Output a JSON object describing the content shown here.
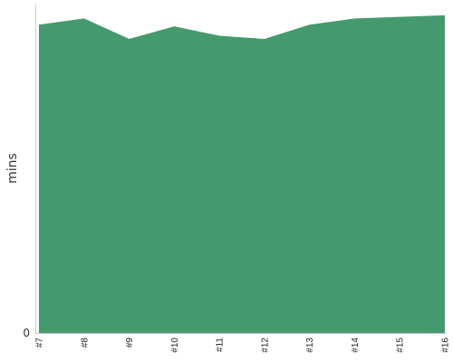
{
  "chart_data": {
    "type": "area",
    "categories": [
      "#7",
      "#8",
      "#9",
      "#10",
      "#11",
      "#12",
      "#13",
      "#14",
      "#15",
      "#16"
    ],
    "values": [
      98,
      100,
      93.5,
      97.5,
      94.5,
      93.5,
      98,
      100,
      100.5,
      101
    ],
    "xlabel": "",
    "ylabel": "mins",
    "yticks": [
      "0"
    ],
    "ylim": [
      0,
      105
    ],
    "grid": false,
    "legend": "none",
    "colors": {
      "area": "#449a6d",
      "axis": "#cccccc",
      "tick": "#333333"
    }
  }
}
